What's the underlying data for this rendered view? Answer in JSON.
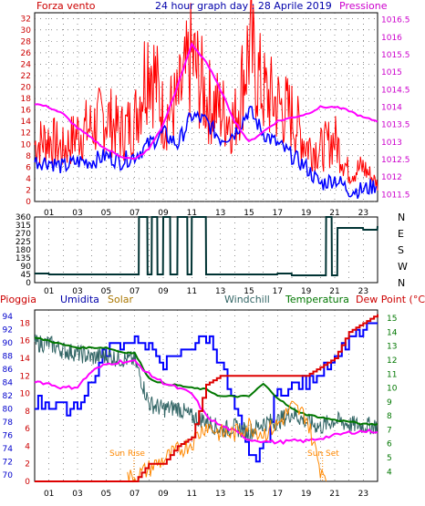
{
  "title": "24 hour graph day : 28 Aprile 2019",
  "panel1": {
    "left_label": "Forza vento",
    "right_label": "Pressione",
    "left_ticks": [
      "0",
      "2",
      "4",
      "6",
      "8",
      "10",
      "12",
      "14",
      "16",
      "18",
      "20",
      "22",
      "24",
      "26",
      "28",
      "30",
      "32"
    ],
    "right_ticks": [
      "1011.5",
      "1012",
      "1012.5",
      "1013",
      "1013.5",
      "1014",
      "1014.5",
      "1015",
      "1015.5",
      "1016",
      "1016.5"
    ]
  },
  "panel2": {
    "left_ticks": [
      "0",
      "45",
      "90",
      "135",
      "180",
      "225",
      "270",
      "315",
      "360"
    ],
    "right_ticks": [
      "N",
      "W",
      "S",
      "E",
      "N"
    ]
  },
  "panel3": {
    "labels": {
      "pioggia": "Pioggia",
      "umidita": "Umidita",
      "solar": "Solar",
      "windchill": "Windchill",
      "temperatura": "Temperatura",
      "dewpoint": "Dew Point (°C)",
      "sunrise": "Sun Rise",
      "sunset": "Sun Set"
    },
    "hum_ticks": [
      "70",
      "72",
      "74",
      "76",
      "78",
      "80",
      "82",
      "84",
      "86",
      "88",
      "90",
      "92",
      "94"
    ],
    "rain_ticks": [
      "0",
      "2",
      "4",
      "6",
      "8",
      "10",
      "12",
      "14",
      "16",
      "18"
    ],
    "temp_ticks": [
      "4",
      "5",
      "6",
      "7",
      "8",
      "9",
      "10",
      "11",
      "12",
      "13",
      "14",
      "15"
    ]
  },
  "x_ticks": [
    "01",
    "03",
    "05",
    "07",
    "09",
    "11",
    "13",
    "15",
    "17",
    "19",
    "21",
    "23"
  ],
  "colors": {
    "wind": "#ff0000",
    "gust": "#ff0000",
    "avg_wind": "#0000ff",
    "pressure": "#ff00ff",
    "direction": "#003333",
    "humidity": "#0000ff",
    "rain": "#dd0000",
    "solar": "#ff8800",
    "windchill": "#336666",
    "temperature": "#007700",
    "dewpoint": "#ff00ff"
  },
  "chart_data": [
    {
      "type": "line",
      "x": [
        0,
        1,
        2,
        3,
        4,
        5,
        6,
        7,
        8,
        9,
        10,
        11,
        12,
        13,
        14,
        15,
        16,
        17,
        18,
        19,
        20,
        21,
        22,
        23,
        24
      ],
      "series": [
        {
          "name": "Forza vento",
          "values": [
            10,
            11,
            9,
            12,
            13,
            15,
            12,
            14,
            26,
            15,
            17,
            25,
            18,
            16,
            14,
            27,
            19,
            17,
            15,
            10,
            9,
            11,
            5,
            6,
            3
          ]
        },
        {
          "name": "Pressione",
          "values": [
            1014.1,
            1014,
            1013.8,
            1013.4,
            1013.1,
            1012.8,
            1012.6,
            1012.5,
            1012.8,
            1013.5,
            1014.6,
            1015.8,
            1015.3,
            1014.5,
            1013.6,
            1013,
            1013.3,
            1013.6,
            1013.7,
            1013.8,
            1014,
            1014,
            1013.9,
            1013.7,
            1013.6
          ]
        }
      ],
      "series_extra": {
        "avg_wind": [
          7,
          7,
          6,
          7,
          7,
          8,
          7,
          8,
          10,
          12,
          10,
          15,
          14,
          11,
          12,
          16,
          12,
          10,
          8,
          6,
          3,
          4,
          2,
          2,
          3
        ]
      },
      "ylim": [
        0,
        33
      ],
      "y2lim": [
        1011.3,
        1016.7
      ]
    },
    {
      "type": "line",
      "x": [
        0,
        1,
        2,
        3,
        4,
        5,
        6,
        7,
        7.3,
        7.9,
        8.2,
        8.6,
        9,
        9.5,
        10,
        10.7,
        11,
        12,
        13,
        14,
        15,
        16,
        17,
        18,
        19,
        20,
        20.4,
        20.8,
        21.2,
        22,
        23,
        24
      ],
      "series": [
        {
          "name": "Direzione",
          "values": [
            50,
            45,
            45,
            45,
            45,
            45,
            45,
            45,
            360,
            45,
            360,
            45,
            360,
            45,
            360,
            45,
            360,
            45,
            45,
            45,
            45,
            45,
            50,
            40,
            40,
            40,
            360,
            40,
            300,
            300,
            290,
            310
          ]
        }
      ],
      "ylim": [
        0,
        360
      ]
    },
    {
      "type": "line",
      "x": [
        0,
        1,
        2,
        3,
        4,
        5,
        6,
        7,
        8,
        9,
        10,
        11,
        12,
        13,
        14,
        15,
        16,
        17,
        18,
        19,
        20,
        21,
        22,
        23,
        24
      ],
      "series": [
        {
          "name": "Umidita",
          "values": [
            81,
            81,
            80,
            81,
            84,
            89,
            90,
            91,
            89,
            87,
            88,
            90,
            91,
            87,
            80,
            72,
            74,
            83,
            83,
            84,
            86,
            88,
            91,
            92,
            93
          ]
        },
        {
          "name": "Temperatura",
          "values": [
            13.6,
            13.4,
            13.1,
            12.9,
            12.9,
            12.9,
            12.6,
            12.5,
            10.7,
            10.3,
            10.2,
            10.0,
            9.9,
            9.4,
            9.4,
            9.4,
            10.3,
            9.3,
            8.5,
            8.1,
            7.9,
            7.7,
            7.6,
            7.4,
            7.4
          ]
        },
        {
          "name": "Windchill",
          "values": [
            13.2,
            13.2,
            12.7,
            12.5,
            12.2,
            12.3,
            12.1,
            12.0,
            8.9,
            8.5,
            8.6,
            7.9,
            7.7,
            7.0,
            7.2,
            6.8,
            7.5,
            7.6,
            8.2,
            7.6,
            7.2,
            7.7,
            7.4,
            7.3,
            7.3
          ]
        },
        {
          "name": "Dew Point",
          "values": [
            10.5,
            10.3,
            10.0,
            10.1,
            11.2,
            11.7,
            11.9,
            11.9,
            11.0,
            10.4,
            10.0,
            9.6,
            8.0,
            7.3,
            6.9,
            6.3,
            6.2,
            6.1,
            6.2,
            6.2,
            6.4,
            6.6,
            6.8,
            6.9,
            6.9
          ]
        },
        {
          "name": "Pioggia",
          "values": [
            0,
            0,
            0,
            0,
            0,
            0,
            0,
            0,
            2,
            2,
            4,
            5,
            11,
            12,
            12,
            12,
            12,
            12,
            12,
            12,
            13,
            14,
            17,
            18,
            19
          ]
        },
        {
          "name": "Solar",
          "values": [
            0,
            0,
            0,
            0,
            0,
            0,
            0,
            0,
            1,
            2,
            3,
            4,
            6,
            5,
            5,
            6,
            5,
            6,
            8,
            7,
            1,
            0,
            0,
            0,
            0
          ]
        }
      ]
    }
  ]
}
